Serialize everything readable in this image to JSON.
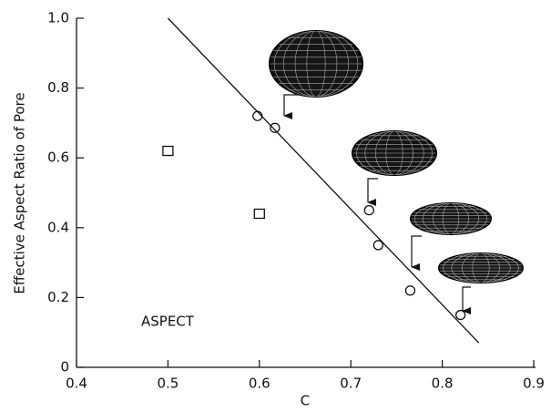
{
  "chart_data": {
    "type": "scatter",
    "xlabel": "C",
    "ylabel": "Effective Aspect Ratio of Pore",
    "annotation": "ASPECT",
    "xlim": [
      0.4,
      0.9
    ],
    "ylim": [
      0,
      1
    ],
    "xticks": [
      0.4,
      0.5,
      0.6,
      0.7,
      0.8,
      0.9
    ],
    "yticks": [
      0,
      0.2,
      0.4,
      0.6,
      0.8,
      {
        "value": 1,
        "label": "1.0"
      }
    ],
    "series": [
      {
        "marker": "circle",
        "color": "#111",
        "x": [
          0.598,
          0.617,
          0.72,
          0.73,
          0.765,
          0.82
        ],
        "values": [
          0.72,
          0.686,
          0.45,
          0.35,
          0.22,
          0.15
        ]
      },
      {
        "marker": "square",
        "color": "#111",
        "x": [
          0.5,
          0.6
        ],
        "values": [
          0.62,
          0.44
        ]
      },
      {
        "marker": "line",
        "color": "#111",
        "x": [
          0.5,
          0.84
        ],
        "values": [
          1.0,
          0.07
        ]
      }
    ]
  }
}
